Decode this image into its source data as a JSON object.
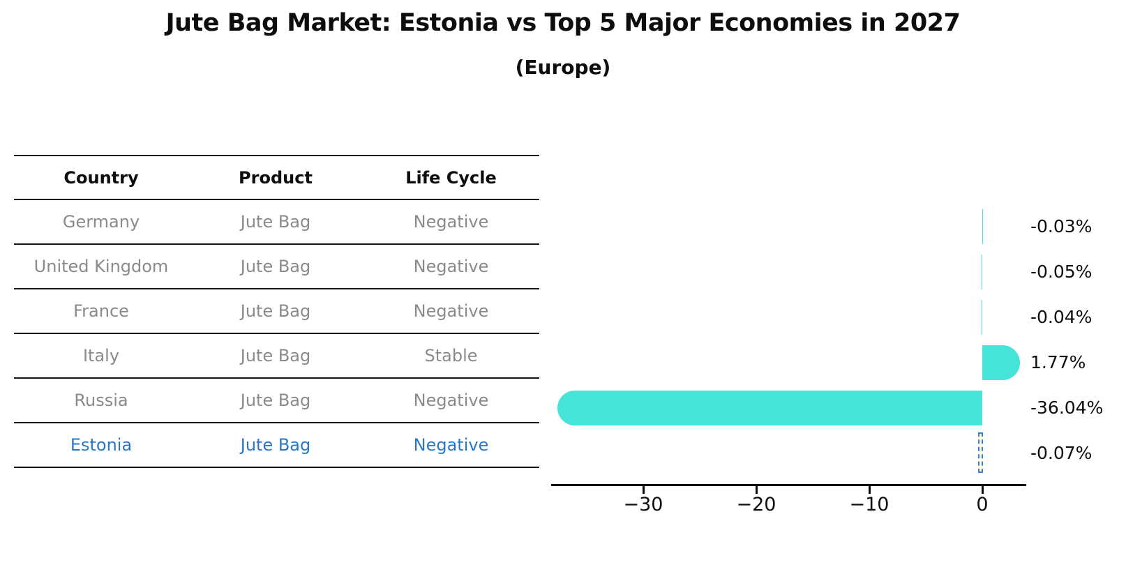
{
  "title": "Jute Bag Market: Estonia vs Top 5 Major Economies in 2027",
  "subtitle": "(Europe)",
  "table": {
    "headers": [
      "Country",
      "Product",
      "Life Cycle"
    ],
    "rows": [
      {
        "country": "Germany",
        "product": "Jute Bag",
        "life_cycle": "Negative"
      },
      {
        "country": "United Kingdom",
        "product": "Jute Bag",
        "life_cycle": "Negative"
      },
      {
        "country": "France",
        "product": "Jute Bag",
        "life_cycle": "Negative"
      },
      {
        "country": "Italy",
        "product": "Jute Bag",
        "life_cycle": "Stable"
      },
      {
        "country": "Russia",
        "product": "Jute Bag",
        "life_cycle": "Negative"
      },
      {
        "country": "Estonia",
        "product": "Jute Bag",
        "life_cycle": "Negative"
      }
    ],
    "highlighted_row": "Estonia"
  },
  "chart_data": {
    "type": "bar",
    "orientation": "horizontal",
    "categories": [
      "Germany",
      "United Kingdom",
      "France",
      "Italy",
      "Russia",
      "Estonia"
    ],
    "values": [
      -0.03,
      -0.05,
      -0.04,
      1.77,
      -36.04,
      -0.07
    ],
    "value_labels": [
      "-0.03%",
      "-0.05%",
      "-0.04%",
      "1.77%",
      "-36.04%",
      "-0.07%"
    ],
    "x_ticks": [
      "−30",
      "−20",
      "−10",
      "0"
    ],
    "x_tick_values": [
      -30,
      -20,
      -10,
      0
    ],
    "xlim": [
      -38.2,
      3.8
    ],
    "grid": false,
    "legend": "none",
    "bar_color": "#45E4D8",
    "highlight_index": 5,
    "highlight_border_color": "#3C7DC8",
    "highlight_fill_color": "#FFFACD"
  },
  "colors": {
    "bar": "#45E4D8",
    "highlight_text": "#2878C8",
    "table_text": "#8a8a8a",
    "heading_text": "#0d0d0d"
  }
}
